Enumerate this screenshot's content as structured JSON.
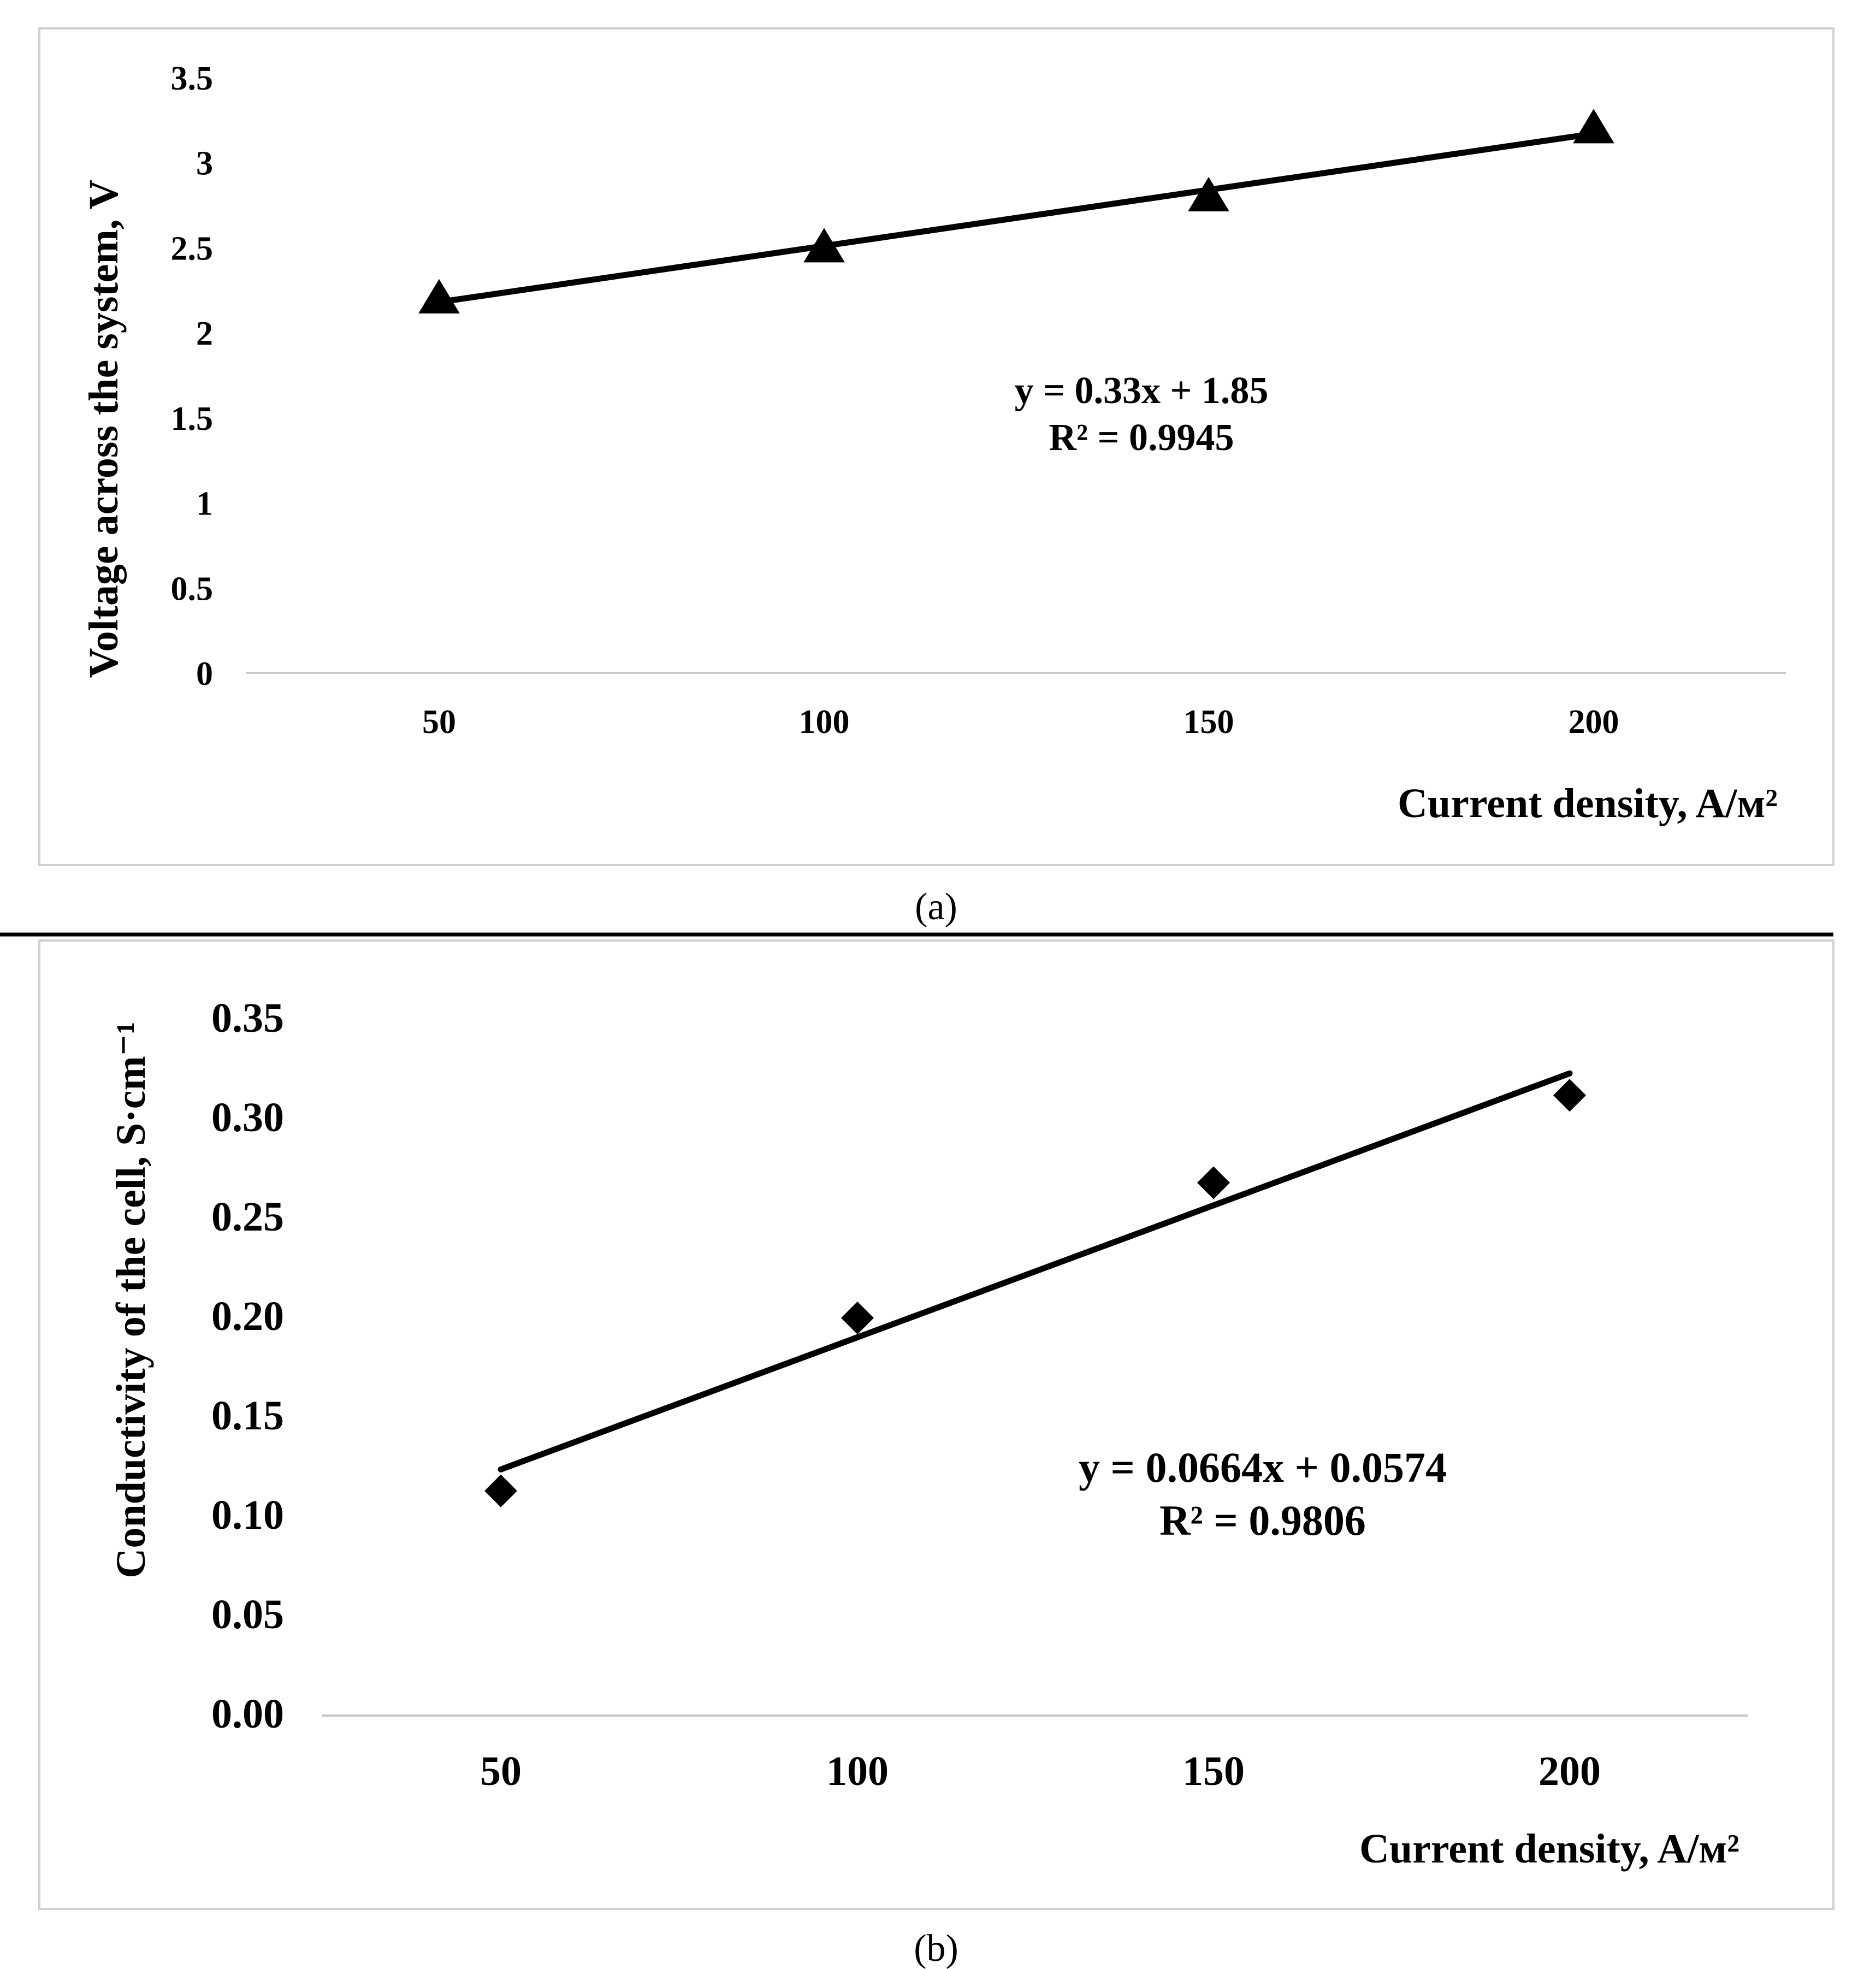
{
  "chart_data": [
    {
      "id": "a",
      "type": "scatter",
      "marker": "triangle",
      "caption": "(a)",
      "xlabel": "Current density, A/м²",
      "ylabel": "Voltage across the system, V",
      "x_ticks": [
        "50",
        "100",
        "150",
        "200"
      ],
      "y_ticks": [
        "0",
        "0.5",
        "1",
        "1.5",
        "2",
        "2.5",
        "3",
        "3.5"
      ],
      "ylim": [
        0,
        3.5
      ],
      "categories": [
        "50",
        "100",
        "150",
        "200"
      ],
      "values": [
        2.2,
        2.5,
        2.8,
        3.2
      ],
      "trendline": {
        "slope": 0.33,
        "intercept": 1.85,
        "equation": "y = 0.33x + 1.85",
        "r_squared": "R² = 0.9945"
      }
    },
    {
      "id": "b",
      "type": "scatter",
      "marker": "diamond",
      "caption": "(b)",
      "xlabel": "Current density, A/м²",
      "ylabel": "Conductivity of the cell, S·cm⁻¹",
      "x_ticks": [
        "50",
        "100",
        "150",
        "200"
      ],
      "y_ticks": [
        "0.00",
        "0.05",
        "0.10",
        "0.15",
        "0.20",
        "0.25",
        "0.30",
        "0.35"
      ],
      "ylim": [
        0,
        0.35
      ],
      "categories": [
        "50",
        "100",
        "150",
        "200"
      ],
      "values": [
        0.113,
        0.2,
        0.268,
        0.312
      ],
      "trendline": {
        "slope": 0.0664,
        "intercept": 0.0574,
        "equation": "y = 0.0664x + 0.0574",
        "r_squared": "R² = 0.9806"
      }
    }
  ]
}
